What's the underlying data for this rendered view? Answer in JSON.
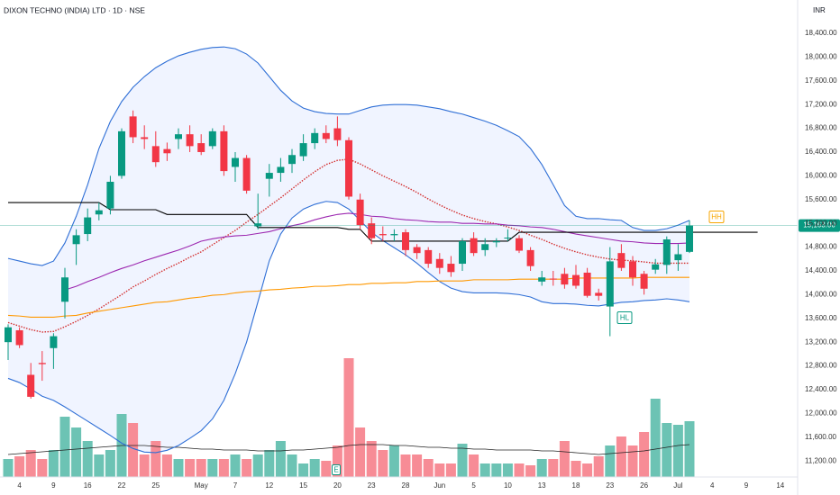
{
  "chart_data": {
    "type": "candlestick",
    "title": "DIXON TECHNO (INDIA) LTD · 1D · NSE",
    "currency": "INR",
    "categories": [
      null,
      "4",
      null,
      null,
      "9",
      null,
      null,
      "16",
      null,
      null,
      "22",
      null,
      null,
      "25",
      null,
      null,
      null,
      "May",
      null,
      null,
      "7",
      null,
      null,
      "12",
      null,
      null,
      "15",
      null,
      null,
      "20",
      null,
      null,
      "23",
      null,
      null,
      "28",
      null,
      null,
      "Jun",
      null,
      null,
      "5",
      null,
      null,
      "10",
      null,
      null,
      "13",
      null,
      null,
      "18",
      null,
      null,
      "23",
      null,
      null,
      "26",
      null,
      null,
      "Jul",
      null,
      null,
      "4",
      null,
      null,
      "9",
      null,
      null,
      "14"
    ],
    "open": [
      13200,
      13400,
      12650,
      12850,
      13100,
      13880,
      14850,
      15020,
      15350,
      15450,
      16000,
      17000,
      16650,
      16500,
      16450,
      16620,
      16700,
      16550,
      16500,
      16750,
      16150,
      16300,
      15150,
      15950,
      16050,
      16200,
      16330,
      16550,
      16720,
      16800,
      16600,
      15600,
      15200,
      15020,
      15000,
      15050,
      14800,
      14750,
      14600,
      14520,
      14520,
      14950,
      14750,
      14880,
      14950,
      14950,
      14750,
      14220,
      14270,
      14350,
      14330,
      14370,
      14030,
      13800,
      14700,
      14560,
      14350,
      14420,
      14500,
      14580,
      14720,
      null,
      null,
      null,
      null,
      null,
      null,
      null,
      null
    ],
    "high": [
      13500,
      13450,
      12850,
      13050,
      13350,
      14450,
      15100,
      15450,
      15550,
      16000,
      16800,
      17100,
      16850,
      16750,
      16560,
      16800,
      16850,
      16700,
      16800,
      16850,
      16400,
      16350,
      15700,
      16200,
      16300,
      16450,
      16700,
      16800,
      16850,
      17000,
      16650,
      15700,
      15300,
      15150,
      15100,
      15100,
      14850,
      14800,
      14700,
      14650,
      14950,
      15050,
      14950,
      14950,
      15100,
      15000,
      14800,
      14400,
      14400,
      14450,
      14500,
      14450,
      14100,
      14800,
      14850,
      14650,
      14400,
      14600,
      14980,
      14850,
      15250,
      null,
      null,
      null,
      null,
      null,
      null,
      null,
      null
    ],
    "low": [
      12900,
      13100,
      12250,
      12550,
      12750,
      13600,
      14500,
      14900,
      15250,
      15350,
      15950,
      16550,
      16450,
      16150,
      16250,
      16450,
      16400,
      16350,
      16450,
      16000,
      15900,
      15700,
      15100,
      15650,
      15900,
      16050,
      16250,
      16450,
      16550,
      16500,
      15600,
      15100,
      14850,
      14900,
      14900,
      14650,
      14600,
      14450,
      14350,
      14300,
      14400,
      14650,
      14650,
      14800,
      14900,
      14700,
      14400,
      14150,
      14150,
      14100,
      14100,
      13950,
      13900,
      13300,
      14400,
      14150,
      14000,
      14350,
      14350,
      14400,
      14700,
      null,
      null,
      null,
      null,
      null,
      null,
      null,
      null
    ],
    "close": [
      13450,
      13150,
      12280,
      12830,
      13300,
      14290,
      15000,
      15300,
      15420,
      15900,
      16750,
      16650,
      16620,
      16230,
      16380,
      16700,
      16500,
      16400,
      16750,
      16080,
      16300,
      15750,
      15200,
      16050,
      16150,
      16350,
      16550,
      16720,
      16620,
      16600,
      15650,
      15170,
      14950,
      15000,
      15020,
      14750,
      14700,
      14520,
      14450,
      14380,
      14900,
      14700,
      14850,
      14900,
      14960,
      14740,
      14480,
      14290,
      14260,
      14170,
      14150,
      13980,
      13980,
      14560,
      14450,
      14290,
      14100,
      14510,
      14930,
      14680,
      15163,
      null,
      null,
      null,
      null,
      null,
      null,
      null,
      null
    ],
    "up_color": "#089981",
    "down_color": "#f23645",
    "volume": [
      20,
      23,
      30,
      20,
      30,
      67,
      55,
      40,
      25,
      30,
      70,
      60,
      25,
      40,
      25,
      20,
      20,
      20,
      20,
      20,
      25,
      20,
      25,
      30,
      40,
      25,
      15,
      20,
      18,
      35,
      132,
      55,
      40,
      30,
      35,
      25,
      25,
      20,
      15,
      15,
      37,
      25,
      15,
      15,
      15,
      15,
      13,
      20,
      20,
      40,
      18,
      15,
      23,
      35,
      45,
      35,
      50,
      87,
      60,
      58,
      62,
      null,
      null,
      null,
      null,
      null,
      null,
      null,
      null
    ],
    "volume_up_color": "#6cc3b4",
    "volume_down_color": "#f78c96",
    "volume_ma": {
      "color": "#222222",
      "values": [
        25,
        26,
        27,
        28,
        29,
        30,
        31,
        32,
        33,
        34,
        35,
        35,
        35,
        34,
        33,
        33,
        32,
        31,
        31,
        30,
        30,
        30,
        29,
        29,
        29,
        30,
        30,
        31,
        32,
        33,
        35,
        36,
        36,
        36,
        35,
        35,
        34,
        33,
        33,
        32,
        32,
        31,
        31,
        30,
        30,
        30,
        30,
        29,
        29,
        28,
        27,
        26,
        25,
        26,
        27,
        28,
        29,
        31,
        33,
        35,
        36,
        null,
        null,
        null,
        null,
        null,
        null,
        null,
        null
      ]
    },
    "band_fill": "#2962ff",
    "indicators": [
      {
        "color": "#2f6fd6",
        "style": "solid",
        "values": [
          14610,
          14565,
          14520,
          14490,
          14565,
          14870,
          15320,
          15850,
          16460,
          16915,
          17250,
          17490,
          17670,
          17820,
          17930,
          18020,
          18080,
          18130,
          18160,
          18170,
          18140,
          18050,
          17900,
          17670,
          17440,
          17260,
          17140,
          17080,
          17050,
          17040,
          17040,
          17100,
          17160,
          17190,
          17200,
          17200,
          17190,
          17160,
          17130,
          17080,
          17040,
          16980,
          16920,
          16850,
          16760,
          16660,
          16460,
          16190,
          15850,
          15500,
          15320,
          15280,
          15280,
          15260,
          15250,
          15130,
          15080,
          15080,
          15110,
          15170,
          15250,
          null,
          null,
          null,
          null,
          null,
          null,
          null,
          null
        ]
      },
      {
        "color": "#2f6fd6",
        "style": "solid",
        "values": [
          12590,
          12520,
          12410,
          12290,
          12220,
          12110,
          11990,
          11870,
          11750,
          11630,
          11500,
          11410,
          11350,
          11340,
          11380,
          11460,
          11580,
          11710,
          11910,
          12220,
          12670,
          13200,
          13880,
          14570,
          15020,
          15290,
          15440,
          15520,
          15570,
          15550,
          15440,
          15250,
          15050,
          14910,
          14790,
          14670,
          14530,
          14370,
          14220,
          14110,
          14050,
          14030,
          14030,
          14030,
          14020,
          14000,
          13960,
          13880,
          13850,
          13850,
          13840,
          13820,
          13810,
          13840,
          13870,
          13880,
          13900,
          13910,
          13930,
          13910,
          13880,
          null,
          null,
          null,
          null,
          null,
          null,
          null,
          null
        ]
      },
      {
        "color": "#d32f2f",
        "style": "dotted",
        "values": [
          13530,
          13470,
          13410,
          13370,
          13380,
          13460,
          13550,
          13650,
          13760,
          13880,
          14000,
          14130,
          14230,
          14340,
          14440,
          14530,
          14630,
          14720,
          14840,
          14960,
          15080,
          15220,
          15350,
          15490,
          15630,
          15780,
          15930,
          16070,
          16190,
          16260,
          16280,
          16200,
          16100,
          16000,
          15910,
          15820,
          15720,
          15610,
          15510,
          15420,
          15340,
          15280,
          15230,
          15190,
          15140,
          15080,
          15000,
          14930,
          14850,
          14780,
          14720,
          14670,
          14630,
          14600,
          14580,
          14570,
          14550,
          14530,
          14530,
          14530,
          14530,
          null,
          null,
          null,
          null,
          null,
          null,
          null,
          null
        ]
      },
      {
        "color": "#9c27b0",
        "style": "solid",
        "values": [
          null,
          null,
          null,
          null,
          null,
          14080,
          14140,
          14220,
          14290,
          14370,
          14440,
          14500,
          14570,
          14630,
          14690,
          14750,
          14820,
          14900,
          14940,
          14970,
          14990,
          15000,
          15030,
          15060,
          15110,
          15160,
          15200,
          15260,
          15310,
          15350,
          15370,
          15350,
          15320,
          15310,
          15280,
          15260,
          15250,
          15230,
          15220,
          15220,
          15200,
          15200,
          15190,
          15190,
          15170,
          15160,
          15140,
          15130,
          15100,
          15060,
          15020,
          14990,
          14960,
          14930,
          14900,
          14890,
          14870,
          14860,
          14860,
          14860,
          14870,
          null,
          null,
          null,
          null,
          null,
          null,
          null,
          null
        ]
      },
      {
        "color": "#ff9800",
        "style": "solid",
        "values": [
          13650,
          13640,
          13620,
          13620,
          13620,
          13640,
          13650,
          13690,
          13720,
          13750,
          13780,
          13810,
          13840,
          13870,
          13880,
          13910,
          13940,
          13960,
          13990,
          14000,
          14030,
          14050,
          14060,
          14080,
          14090,
          14110,
          14120,
          14140,
          14140,
          14150,
          14170,
          14170,
          14190,
          14190,
          14200,
          14200,
          14220,
          14220,
          14230,
          14230,
          14230,
          14250,
          14250,
          14250,
          14250,
          14260,
          14260,
          14260,
          14260,
          14260,
          14280,
          14280,
          14280,
          14280,
          14280,
          14280,
          14290,
          14290,
          14290,
          14290,
          14290,
          null,
          null,
          null,
          null,
          null,
          null,
          null,
          null
        ]
      },
      {
        "color": "#000000",
        "style": "solid",
        "values": [
          15550,
          15550,
          15550,
          15550,
          15550,
          15550,
          15550,
          15550,
          15550,
          15430,
          15430,
          15430,
          15430,
          15430,
          15350,
          15350,
          15350,
          15350,
          15350,
          15350,
          15350,
          15350,
          15130,
          15130,
          15130,
          15130,
          15130,
          15130,
          15130,
          15130,
          15100,
          15100,
          14900,
          14900,
          14900,
          14900,
          14900,
          14900,
          14900,
          14900,
          14900,
          14900,
          14900,
          14900,
          14900,
          15050,
          15050,
          15050,
          15050,
          15050,
          15050,
          15050,
          15050,
          15050,
          15050,
          15050,
          15050,
          15050,
          15050,
          15050,
          15050,
          15050,
          15050,
          15050,
          15050,
          15050,
          15050,
          null,
          null
        ]
      }
    ],
    "last_price": {
      "value": 15163,
      "label": "15,163.00"
    },
    "annotations": [
      {
        "text": "HH",
        "color": "#f7a600"
      },
      {
        "text": "HL",
        "color": "#089981"
      },
      {
        "text": "E",
        "color": "#089981"
      }
    ],
    "ylim": [
      10930,
      18960
    ],
    "yticks": [
      {
        "value": 11200,
        "label": "11,200.00"
      },
      {
        "value": 11600,
        "label": "11,600.00"
      },
      {
        "value": 12000,
        "label": "12,000.00"
      },
      {
        "value": 12400,
        "label": "12,400.00"
      },
      {
        "value": 12800,
        "label": "12,800.00"
      },
      {
        "value": 13200,
        "label": "13,200.00"
      },
      {
        "value": 13600,
        "label": "13,600.00"
      },
      {
        "value": 14000,
        "label": "14,000.00"
      },
      {
        "value": 14400,
        "label": "14,400.00"
      },
      {
        "value": 14800,
        "label": "14,800.00"
      },
      {
        "value": 15200,
        "label": "15,200.00"
      },
      {
        "value": 15600,
        "label": "15,600.00"
      },
      {
        "value": 16000,
        "label": "16,000.00"
      },
      {
        "value": 16400,
        "label": "16,400.00"
      },
      {
        "value": 16800,
        "label": "16,800.00"
      },
      {
        "value": 17200,
        "label": "17,200.00"
      },
      {
        "value": 17600,
        "label": "17,600.00"
      },
      {
        "value": 18000,
        "label": "18,000.00"
      },
      {
        "value": 18400,
        "label": "18,400.00"
      }
    ],
    "grid": false
  }
}
